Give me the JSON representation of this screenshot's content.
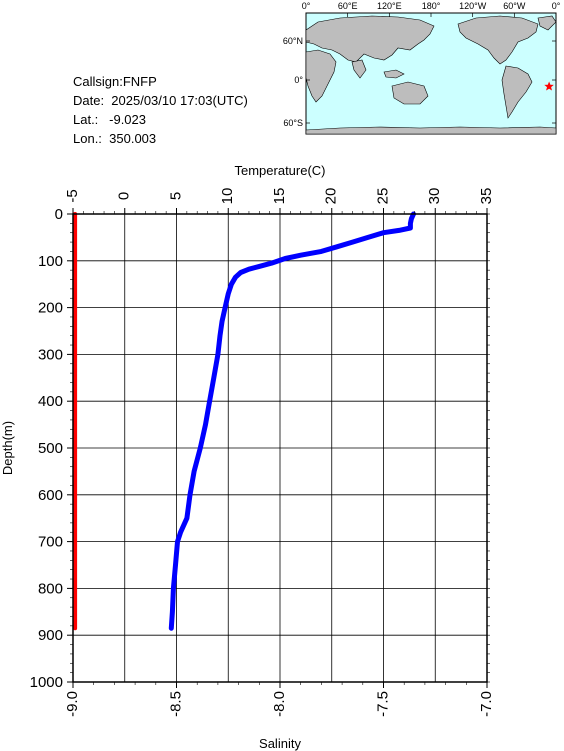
{
  "info": {
    "callsign": "Callsign:FNFP",
    "date": "Date:  2025/03/10 17:03(UTC)",
    "lat": "Lat.:   -9.023",
    "lon": "Lon.:  350.003"
  },
  "map": {
    "lon_ticks": [
      "0°",
      "60°E",
      "120°E",
      "180°",
      "120°W",
      "60°W",
      "0°"
    ],
    "lat_ticks": [
      "60°N",
      "0°",
      "60°S"
    ],
    "ocean_color": "#ccffff",
    "land_color": "#bdbdbd",
    "marker": {
      "lon": 350.003,
      "lat": -9.023,
      "color": "#ff0000",
      "symbol": "star"
    }
  },
  "chart_data": {
    "type": "line",
    "ylabel": "Depth(m)",
    "ylim": [
      1000,
      0
    ],
    "y_ticks": [
      "0",
      "100",
      "200",
      "300",
      "400",
      "500",
      "600",
      "700",
      "800",
      "900",
      "1000"
    ],
    "temperature_axis": {
      "label": "Temperature(C)",
      "range": [
        -5,
        35
      ],
      "ticks": [
        "-5",
        "0",
        "5",
        "10",
        "15",
        "20",
        "25",
        "30",
        "35"
      ]
    },
    "salinity_axis": {
      "label": "Salinity",
      "range": [
        -9.0,
        -7.0
      ],
      "ticks": [
        "-9.0",
        "-8.5",
        "-8.0",
        "-7.5",
        "-7.0"
      ]
    },
    "grid": true,
    "series": [
      {
        "axis": "temperature",
        "color": "#0000ff",
        "points": [
          [
            27.9,
            0
          ],
          [
            27.7,
            10
          ],
          [
            27.6,
            20
          ],
          [
            27.6,
            30
          ],
          [
            26.5,
            35
          ],
          [
            25,
            40
          ],
          [
            23.5,
            50
          ],
          [
            22,
            60
          ],
          [
            20.5,
            70
          ],
          [
            19,
            80
          ],
          [
            17,
            88
          ],
          [
            15.5,
            95
          ],
          [
            14.2,
            105
          ],
          [
            13,
            112
          ],
          [
            12,
            118
          ],
          [
            11.2,
            125
          ],
          [
            10.7,
            135
          ],
          [
            10.3,
            150
          ],
          [
            10.0,
            170
          ],
          [
            9.7,
            200
          ],
          [
            9.4,
            230
          ],
          [
            9.2,
            260
          ],
          [
            9.0,
            300
          ],
          [
            8.6,
            350
          ],
          [
            8.2,
            400
          ],
          [
            7.8,
            450
          ],
          [
            7.3,
            500
          ],
          [
            6.7,
            550
          ],
          [
            6.3,
            600
          ],
          [
            6.0,
            650
          ],
          [
            5.4,
            680
          ],
          [
            5.1,
            700
          ],
          [
            4.9,
            750
          ],
          [
            4.7,
            800
          ],
          [
            4.6,
            850
          ],
          [
            4.5,
            885
          ]
        ]
      },
      {
        "axis": "salinity",
        "color": "#ff0000",
        "points": [
          [
            -8.99,
            0
          ],
          [
            -8.99,
            885
          ]
        ]
      }
    ]
  }
}
